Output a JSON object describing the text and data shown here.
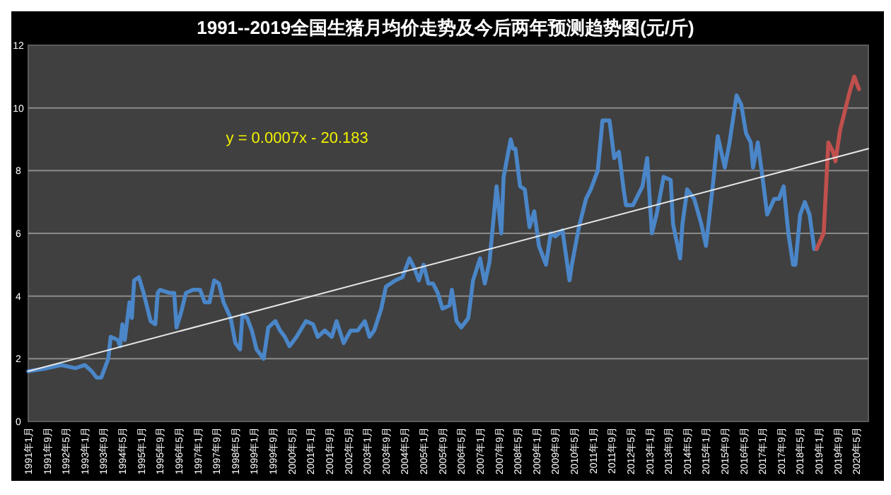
{
  "chart_data": {
    "type": "line",
    "title": "1991--2019全国生猪月均价走势及今后两年预测趋势图(元/斤)",
    "annotations": [
      "y = 0.0007x - 20.183"
    ],
    "xlim": [
      "1991-01",
      "2020-10"
    ],
    "xticks": [
      {
        "value": "1991-01",
        "label": "1991年1月"
      },
      {
        "value": "1991-09",
        "label": "1991年9月"
      },
      {
        "value": "1992-05",
        "label": "1992年5月"
      },
      {
        "value": "1993-01",
        "label": "1993年1月"
      },
      {
        "value": "1993-09",
        "label": "1993年9月"
      },
      {
        "value": "1994-05",
        "label": "1994年5月"
      },
      {
        "value": "1995-01",
        "label": "1995年1月"
      },
      {
        "value": "1995-09",
        "label": "1995年9月"
      },
      {
        "value": "1996-05",
        "label": "1996年5月"
      },
      {
        "value": "1997-01",
        "label": "1997年1月"
      },
      {
        "value": "1997-09",
        "label": "1997年9月"
      },
      {
        "value": "1998-05",
        "label": "1998年5月"
      },
      {
        "value": "1999-01",
        "label": "1999年1月"
      },
      {
        "value": "1999-09",
        "label": "1999年9月"
      },
      {
        "value": "2000-05",
        "label": "2000年5月"
      },
      {
        "value": "2001-01",
        "label": "2001年1月"
      },
      {
        "value": "2001-09",
        "label": "2001年9月"
      },
      {
        "value": "2002-05",
        "label": "2002年5月"
      },
      {
        "value": "2003-01",
        "label": "2003年1月"
      },
      {
        "value": "2003-09",
        "label": "2003年9月"
      },
      {
        "value": "2004-05",
        "label": "2004年5月"
      },
      {
        "value": "2005-01",
        "label": "2005年1月"
      },
      {
        "value": "2005-09",
        "label": "2005年9月"
      },
      {
        "value": "2006-05",
        "label": "2006年5月"
      },
      {
        "value": "2007-01",
        "label": "2007年1月"
      },
      {
        "value": "2007-09",
        "label": "2007年9月"
      },
      {
        "value": "2008-05",
        "label": "2008年5月"
      },
      {
        "value": "2009-01",
        "label": "2009年1月"
      },
      {
        "value": "2009-09",
        "label": "2009年9月"
      },
      {
        "value": "2010-05",
        "label": "2010年5月"
      },
      {
        "value": "2011-01",
        "label": "2011年1月"
      },
      {
        "value": "2011-09",
        "label": "2011年9月"
      },
      {
        "value": "2012-05",
        "label": "2012年5月"
      },
      {
        "value": "2013-01",
        "label": "2013年1月"
      },
      {
        "value": "2013-09",
        "label": "2013年9月"
      },
      {
        "value": "2014-05",
        "label": "2014年5月"
      },
      {
        "value": "2015-01",
        "label": "2015年1月"
      },
      {
        "value": "2015-09",
        "label": "2015年9月"
      },
      {
        "value": "2016-05",
        "label": "2016年5月"
      },
      {
        "value": "2017-01",
        "label": "2017年1月"
      },
      {
        "value": "2017-09",
        "label": "2017年9月"
      },
      {
        "value": "2018-05",
        "label": "2018年5月"
      },
      {
        "value": "2019-01",
        "label": "2019年1月"
      },
      {
        "value": "2019-09",
        "label": "2019年9月"
      },
      {
        "value": "2020-05",
        "label": "2020年5月"
      }
    ],
    "ylim": [
      0,
      12
    ],
    "yticks": [
      0,
      2,
      4,
      6,
      8,
      10,
      12
    ],
    "grid": "y",
    "series": [
      {
        "color": "#4a86c8",
        "x": [
          "1991-01",
          "1991-09",
          "1992-03",
          "1992-09",
          "1993-01",
          "1993-04",
          "1993-06",
          "1993-08",
          "1993-10",
          "1993-11",
          "1993-12",
          "1994-03",
          "1994-04",
          "1994-05",
          "1994-06",
          "1994-08",
          "1994-09",
          "1994-10",
          "1994-12",
          "1995-02",
          "1995-03",
          "1995-05",
          "1995-07",
          "1995-08",
          "1995-09",
          "1996-01",
          "1996-03",
          "1996-04",
          "1996-06",
          "1996-08",
          "1996-11",
          "1997-02",
          "1997-04",
          "1997-06",
          "1997-08",
          "1997-10",
          "1997-12",
          "1998-03",
          "1998-05",
          "1998-07",
          "1998-08",
          "1998-10",
          "1998-12",
          "1999-02",
          "1999-05",
          "1999-07",
          "1999-10",
          "1999-12",
          "2000-02",
          "2000-04",
          "2000-07",
          "2000-11",
          "2001-02",
          "2001-04",
          "2001-07",
          "2001-10",
          "2001-12",
          "2002-03",
          "2002-06",
          "2002-09",
          "2002-12",
          "2003-02",
          "2003-04",
          "2003-07",
          "2003-09",
          "2004-01",
          "2004-04",
          "2004-07",
          "2004-09",
          "2004-11",
          "2005-01",
          "2005-03",
          "2005-05",
          "2005-07",
          "2005-09",
          "2005-12",
          "2006-01",
          "2006-03",
          "2006-05",
          "2006-08",
          "2006-10",
          "2007-01",
          "2007-03",
          "2007-05",
          "2007-08",
          "2007-10",
          "2007-11",
          "2008-02",
          "2008-03",
          "2008-04",
          "2008-06",
          "2008-08",
          "2008-10",
          "2008-12",
          "2009-02",
          "2009-05",
          "2009-07",
          "2009-09",
          "2009-12",
          "2010-03",
          "2010-04",
          "2010-07",
          "2010-10",
          "2010-12",
          "2011-03",
          "2011-05",
          "2011-08",
          "2011-10",
          "2011-12",
          "2012-02",
          "2012-03",
          "2012-06",
          "2012-08",
          "2012-10",
          "2012-12",
          "2013-02",
          "2013-04",
          "2013-07",
          "2013-10",
          "2013-11",
          "2014-02",
          "2014-03",
          "2014-05",
          "2014-08",
          "2014-11",
          "2015-01",
          "2015-04",
          "2015-06",
          "2015-09",
          "2015-11",
          "2016-02",
          "2016-04",
          "2016-06",
          "2016-08",
          "2016-09",
          "2016-11",
          "2017-01",
          "2017-03",
          "2017-06",
          "2017-08",
          "2017-10",
          "2017-12",
          "2018-02",
          "2018-03",
          "2018-05",
          "2018-07",
          "2018-09",
          "2018-11",
          "2018-12"
        ],
        "values": [
          1.6,
          1.7,
          1.8,
          1.7,
          1.8,
          1.6,
          1.4,
          1.4,
          1.8,
          2.0,
          2.7,
          2.6,
          2.4,
          3.1,
          2.6,
          3.8,
          3.3,
          4.5,
          4.6,
          4.1,
          3.8,
          3.2,
          3.1,
          4.1,
          4.2,
          4.1,
          4.1,
          3.0,
          3.5,
          4.1,
          4.2,
          4.2,
          3.8,
          3.8,
          4.5,
          4.4,
          3.8,
          3.3,
          2.5,
          2.3,
          3.4,
          3.3,
          2.9,
          2.3,
          2.0,
          3.0,
          3.2,
          2.9,
          2.7,
          2.4,
          2.7,
          3.2,
          3.1,
          2.7,
          2.9,
          2.7,
          3.2,
          2.5,
          2.9,
          2.9,
          3.2,
          2.7,
          2.9,
          3.6,
          4.3,
          4.5,
          4.6,
          5.2,
          4.9,
          4.5,
          5.0,
          4.4,
          4.4,
          4.1,
          3.6,
          3.7,
          4.2,
          3.2,
          3.0,
          3.3,
          4.5,
          5.2,
          4.4,
          5.1,
          7.5,
          6.0,
          7.8,
          9.0,
          8.7,
          8.7,
          7.5,
          7.4,
          6.2,
          6.7,
          5.6,
          5.0,
          6.0,
          5.9,
          6.1,
          4.5,
          5.0,
          6.2,
          7.1,
          7.4,
          8.0,
          9.6,
          9.6,
          8.4,
          8.6,
          7.4,
          6.9,
          6.9,
          7.2,
          7.5,
          8.4,
          6.0,
          6.6,
          7.8,
          7.7,
          6.3,
          5.2,
          6.3,
          7.4,
          7.1,
          6.3,
          5.6,
          7.6,
          9.1,
          8.1,
          8.9,
          10.4,
          10.1,
          9.2,
          8.9,
          8.1,
          8.9,
          7.8,
          6.6,
          7.1,
          7.1,
          7.5,
          6.0,
          5.0,
          5.0,
          6.6,
          7.0,
          6.6,
          5.5,
          5.5
        ]
      },
      {
        "color": "#c0504d",
        "x": [
          "2018-12",
          "2019-03",
          "2019-05",
          "2019-07",
          "2019-08",
          "2019-10",
          "2019-12",
          "2020-02",
          "2020-04",
          "2020-06"
        ],
        "values": [
          5.5,
          6.0,
          8.9,
          8.6,
          8.3,
          9.3,
          9.9,
          10.5,
          11.0,
          10.6
        ]
      },
      {
        "color": "#e8e8e8",
        "x": [
          "1991-01",
          "2020-10"
        ],
        "values": [
          1.6,
          8.7
        ]
      }
    ]
  }
}
